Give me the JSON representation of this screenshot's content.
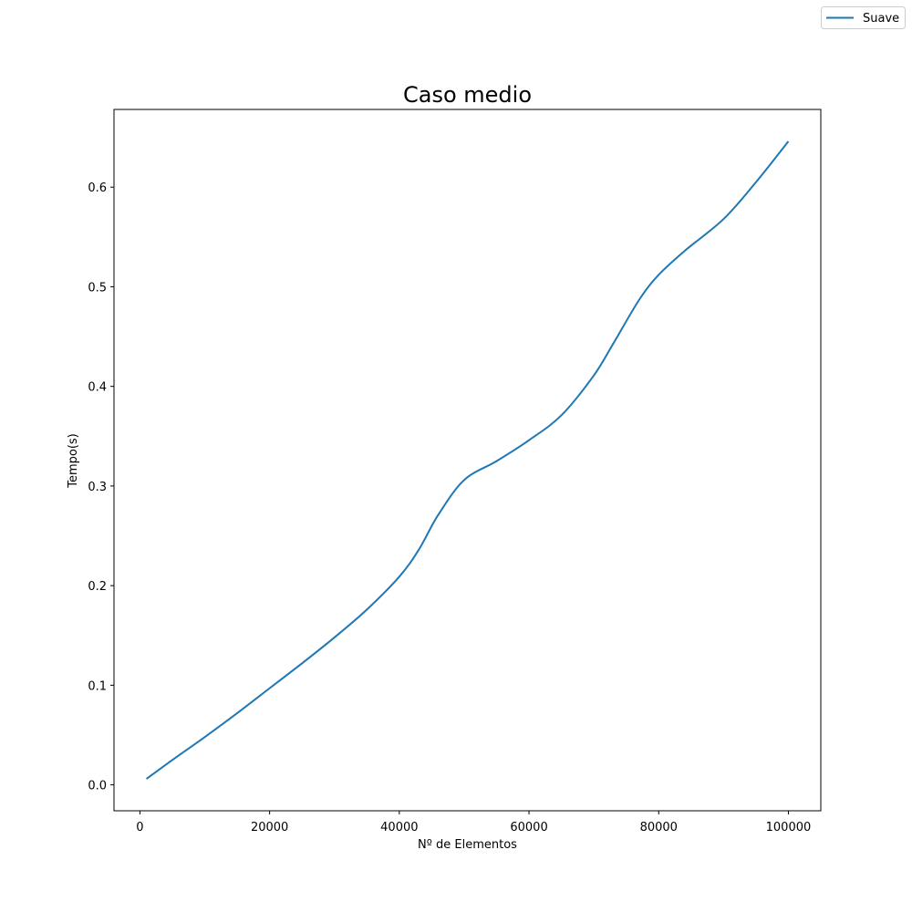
{
  "chart_data": {
    "type": "line",
    "title": "Caso medio",
    "xlabel": "Nº de Elementos",
    "ylabel": "Tempo(s)",
    "xlim": [
      -4000,
      105000
    ],
    "ylim": [
      -0.026,
      0.678
    ],
    "xticks": [
      0,
      20000,
      40000,
      60000,
      80000,
      100000
    ],
    "yticks": [
      0.0,
      0.1,
      0.2,
      0.3,
      0.4,
      0.5,
      0.6
    ],
    "xtick_labels": [
      "0",
      "20000",
      "40000",
      "60000",
      "80000",
      "100000"
    ],
    "ytick_labels": [
      "0.0",
      "0.1",
      "0.2",
      "0.3",
      "0.4",
      "0.5",
      "0.6"
    ],
    "grid": false,
    "legend_position": "top-right (figure)",
    "series": [
      {
        "name": "Suave",
        "color": "#1f77b4",
        "x": [
          1000,
          5000,
          10000,
          15000,
          20000,
          25000,
          30000,
          35000,
          40000,
          43000,
          46000,
          50000,
          55000,
          60000,
          65000,
          70000,
          73000,
          77000,
          80000,
          84000,
          90000,
          95000,
          100000
        ],
        "y": [
          0.006,
          0.025,
          0.048,
          0.072,
          0.097,
          0.122,
          0.148,
          0.176,
          0.209,
          0.236,
          0.271,
          0.306,
          0.325,
          0.346,
          0.371,
          0.411,
          0.443,
          0.487,
          0.512,
          0.536,
          0.568,
          0.605,
          0.646
        ]
      }
    ]
  }
}
